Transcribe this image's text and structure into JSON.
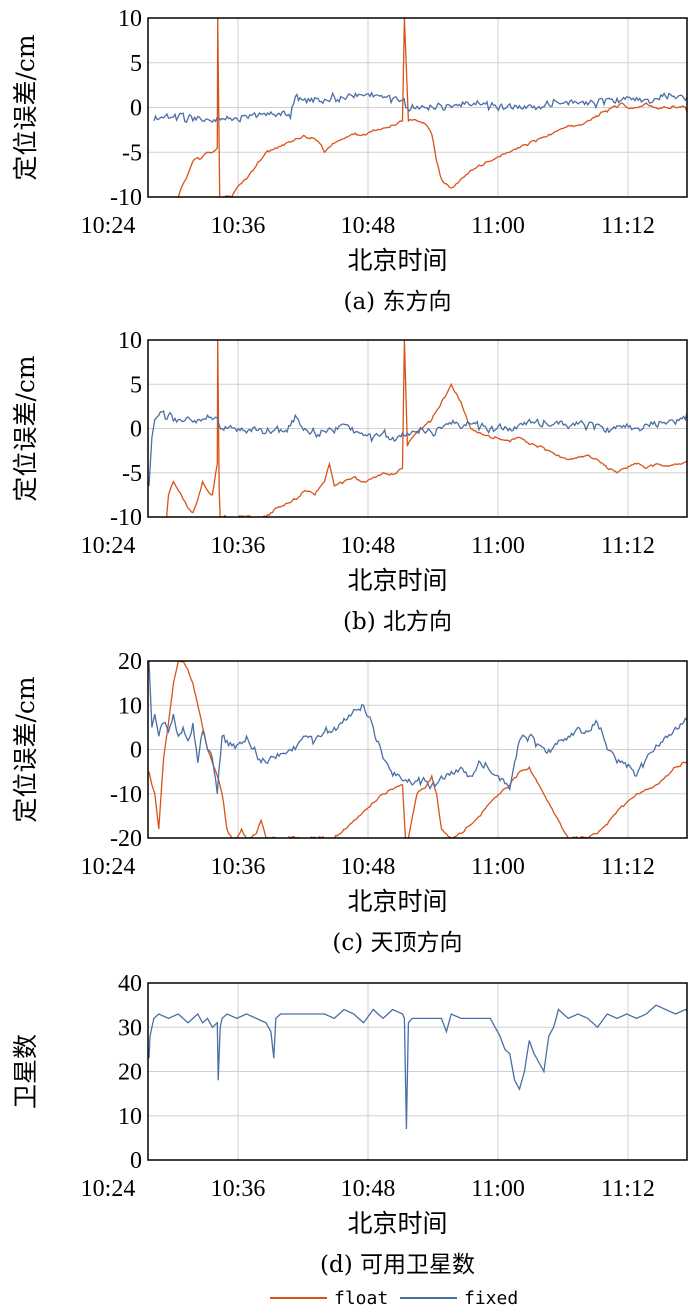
{
  "colors": {
    "float": "#d95319",
    "fixed": "#4a6fa5"
  },
  "legend": {
    "float_label": "float",
    "fixed_label": "fixed"
  },
  "chart_data": [
    {
      "type": "line",
      "caption": "(a) 东方向",
      "xlabel": "北京时间",
      "ylabel": "定位误差/cm",
      "xticks": [
        "10:24",
        "10:36",
        "10:48",
        "11:00",
        "11:12"
      ],
      "xlim_minutes": [
        0,
        56
      ],
      "ylim": [
        -10,
        10
      ],
      "yticks": [
        "10",
        "5",
        "0",
        "-5",
        "-10"
      ],
      "grid": true,
      "series": [
        {
          "name": "float",
          "x": [
            3.0,
            3.3,
            3.8,
            4.5,
            5.5,
            6.0,
            6.5,
            7.0,
            7.05,
            7.2,
            7.25,
            7.6,
            8.5,
            9.0,
            10.0,
            11.0,
            12.0,
            13.0,
            14.0,
            15.0,
            16.0,
            17.0,
            17.5,
            18.0,
            19.0,
            20.0,
            20.5,
            21.0,
            22.0,
            23.0,
            24.0,
            25.0,
            26.0,
            26.2,
            26.6,
            27.5,
            28.5,
            29.0,
            29.5,
            30.0,
            31.0,
            32.0,
            33.0,
            34.0,
            35.0,
            36.0,
            37.0,
            38.0,
            39.0,
            40.0,
            41.0,
            42.0,
            43.0,
            44.0,
            45.0,
            46.0,
            46.5,
            47.0,
            47.5,
            48.0,
            48.5,
            49.0,
            50.0,
            51.0,
            52.0,
            53.0,
            54.0,
            55.0,
            55.5
          ],
          "y": [
            -10,
            -9,
            -8,
            -6,
            -5.5,
            -5,
            -5,
            -4.5,
            10,
            -5,
            -10,
            -10,
            -10,
            -9,
            -8,
            -6.5,
            -5,
            -4.5,
            -4,
            -3.5,
            -3.2,
            -3.5,
            -4,
            -5,
            -4,
            -3.5,
            -3.2,
            -3,
            -3,
            -2.5,
            -2.3,
            -2,
            -1.5,
            10,
            -1.5,
            -1.5,
            -2,
            -3,
            -6,
            -8,
            -9,
            -8,
            -7,
            -6.5,
            -6,
            -5.5,
            -5,
            -4.5,
            -4,
            -3.5,
            -3,
            -2.5,
            -2,
            -2,
            -1.5,
            -1,
            -0.5,
            -0.5,
            0,
            0,
            0.5,
            0,
            0,
            0.5,
            0,
            0,
            0,
            0,
            -1.3
          ]
        },
        {
          "name": "fixed",
          "x": [
            0.5,
            1,
            2,
            3,
            4,
            5,
            6,
            7,
            8,
            9,
            10,
            11,
            12,
            13,
            14,
            14.5,
            15,
            16,
            17,
            18,
            19,
            20,
            21,
            22,
            23,
            24,
            25,
            26,
            26.5,
            27,
            28,
            29,
            30,
            31,
            32,
            33,
            34,
            35,
            36,
            37,
            38,
            39,
            40,
            41,
            42,
            43,
            44,
            45,
            46,
            47,
            48,
            49,
            50,
            51,
            52,
            53,
            54,
            55,
            55.5
          ],
          "y": [
            -1.5,
            -1.3,
            -1.2,
            -1.0,
            -1.2,
            -1.0,
            -1.3,
            -1.1,
            -1.0,
            -1.2,
            -1.0,
            -1.1,
            -0.9,
            -1.0,
            -0.8,
            -1.2,
            1.2,
            1.0,
            1.1,
            0.9,
            1.2,
            1.0,
            1.1,
            1.3,
            1.2,
            1.1,
            1.0,
            0.8,
            0.0,
            0.3,
            0.2,
            0.1,
            0.2,
            0.0,
            0.1,
            0.2,
            0.3,
            0.1,
            0.2,
            0.4,
            0.2,
            0.3,
            0.1,
            0.3,
            0.5,
            0.3,
            0.4,
            0.3,
            0.5,
            1.0,
            1.0,
            1.2,
            1.1,
            0.9,
            1.0,
            1.2,
            1.0,
            0.8,
            0.5
          ]
        }
      ]
    },
    {
      "type": "line",
      "caption": "(b) 北方向",
      "xlabel": "北京时间",
      "ylabel": "定位误差/cm",
      "xticks": [
        "10:24",
        "10:36",
        "10:48",
        "11:00",
        "11:12"
      ],
      "xlim_minutes": [
        0,
        56
      ],
      "ylim": [
        -10,
        10
      ],
      "yticks": [
        "10",
        "5",
        "0",
        "-5",
        "-10"
      ],
      "grid": true,
      "series": [
        {
          "name": "float",
          "x": [
            1.8,
            2.0,
            2.5,
            3.0,
            3.5,
            4.0,
            4.5,
            5.0,
            5.5,
            6.0,
            6.5,
            7.0,
            7.05,
            7.2,
            7.3,
            7.6,
            12.0,
            12.5,
            13.0,
            14.0,
            15.0,
            16.0,
            17.0,
            18.0,
            18.5,
            19.0,
            20.0,
            21.0,
            22.0,
            23.0,
            24.0,
            25.0,
            26.0,
            26.2,
            26.5,
            27.0,
            28.0,
            29.0,
            30.0,
            31.0,
            32.0,
            33.0,
            34.0,
            35.0,
            36.0,
            37.0,
            38.0,
            39.0,
            40.0,
            41.0,
            42.0,
            43.0,
            44.0,
            45.0,
            46.0,
            47.0,
            48.0,
            49.0,
            50.0,
            51.0,
            52.0,
            53.0,
            54.0,
            55.0,
            55.5
          ],
          "y": [
            -10,
            -7.5,
            -6,
            -7,
            -8,
            -9,
            -9.5,
            -8,
            -6,
            -7,
            -7.5,
            -4,
            10,
            -7,
            -10,
            -10,
            -10,
            -9.5,
            -9,
            -8.5,
            -8,
            -7,
            -7.5,
            -6,
            -4,
            -6.5,
            -6,
            -5.5,
            -6,
            -5.5,
            -5,
            -5.2,
            -4.5,
            10,
            -2,
            -1,
            0,
            1,
            3,
            5,
            3,
            0,
            -0.5,
            -1,
            -1.2,
            -1.5,
            -1.0,
            -1.8,
            -2.0,
            -2.5,
            -3.0,
            -3.5,
            -3.2,
            -3.0,
            -3.5,
            -4.5,
            -5.0,
            -4.5,
            -4.0,
            -4.5,
            -4.0,
            -4.2,
            -4.0,
            -3.8,
            -3.0
          ]
        },
        {
          "name": "fixed",
          "x": [
            0.0,
            0.3,
            0.6,
            1,
            2,
            3,
            4,
            5,
            6,
            7,
            7.5,
            8,
            9,
            10,
            11,
            12,
            13,
            14,
            15,
            16,
            17,
            18,
            19,
            20,
            21,
            22,
            23,
            24,
            25,
            26,
            27,
            28,
            29,
            30,
            31,
            32,
            33,
            34,
            35,
            36,
            37,
            38,
            39,
            40,
            41,
            42,
            43,
            44,
            45,
            46,
            47,
            48,
            49,
            50,
            51,
            52,
            53,
            54,
            55,
            55.5
          ],
          "y": [
            -6.5,
            -1.0,
            1.0,
            1.5,
            1.5,
            1.0,
            1.3,
            1.0,
            1.5,
            1.2,
            0.0,
            0.0,
            -0.3,
            -0.5,
            -0.2,
            -0.5,
            0.0,
            -0.2,
            1.5,
            0.0,
            -0.5,
            -0.3,
            -0.5,
            0.5,
            -0.5,
            -0.8,
            -1.0,
            -0.5,
            -1.0,
            -0.5,
            -0.3,
            0.0,
            -0.5,
            0.0,
            0.5,
            0.0,
            0.5,
            0.2,
            0.0,
            0.5,
            0.0,
            0.5,
            1.0,
            0.5,
            0.3,
            0.5,
            0.0,
            0.5,
            0.3,
            0.5,
            0.0,
            0.3,
            0.5,
            0.0,
            0.5,
            0.3,
            0.5,
            0.5,
            1.0,
            1.8
          ]
        }
      ]
    },
    {
      "type": "line",
      "caption": "(c) 天顶方向",
      "xlabel": "北京时间",
      "ylabel": "定位误差/cm",
      "xticks": [
        "10:24",
        "10:36",
        "10:48",
        "11:00",
        "11:12"
      ],
      "xlim_minutes": [
        0,
        56
      ],
      "ylim": [
        -20,
        20
      ],
      "yticks": [
        "20",
        "10",
        "0",
        "-10",
        "-20"
      ],
      "grid": true,
      "series": [
        {
          "name": "float",
          "x": [
            0.0,
            0.3,
            0.6,
            1.0,
            1.5,
            2.0,
            2.5,
            3.0,
            3.5,
            4.0,
            4.5,
            5.0,
            5.5,
            6.0,
            6.5,
            7.0,
            7.5,
            8.0,
            8.5,
            9.0,
            9.5,
            10.0,
            10.5,
            11.0,
            11.5,
            12.0,
            12.5,
            19.0,
            20.0,
            21.0,
            22.0,
            23.0,
            24.0,
            25.0,
            26.0,
            26.3,
            26.6,
            27.5,
            28.5,
            29.0,
            29.5,
            30.0,
            31.0,
            32.0,
            33.0,
            34.0,
            35.0,
            36.0,
            37.0,
            38.0,
            39.0,
            40.0,
            41.0,
            42.0,
            43.0,
            44.0,
            45.0,
            46.0,
            47.0,
            48.0,
            49.0,
            50.0,
            51.0,
            52.0,
            53.0,
            54.0,
            55.0,
            55.5
          ],
          "y": [
            -5,
            -8,
            -10,
            -18,
            -2,
            6,
            15,
            20,
            20,
            18,
            15,
            10,
            5,
            0,
            -3,
            -6,
            -10,
            -18,
            -20,
            -20,
            -18,
            -20,
            -20,
            -19,
            -16,
            -20,
            -20,
            -20,
            -18,
            -16,
            -14,
            -12,
            -10,
            -9,
            -8,
            -20,
            -20,
            -10,
            -8,
            -6,
            -10,
            -18,
            -20,
            -19,
            -17,
            -15,
            -12,
            -10,
            -8,
            -5,
            -4,
            -8,
            -12,
            -16,
            -20,
            -20,
            -20,
            -19,
            -17,
            -14,
            -12,
            -10,
            -9,
            -8,
            -6,
            -4,
            -3,
            -2
          ]
        },
        {
          "name": "fixed",
          "x": [
            0.0,
            0.3,
            0.6,
            1.0,
            1.5,
            2.0,
            2.5,
            3.0,
            3.5,
            4.0,
            4.5,
            5.0,
            5.5,
            6.0,
            6.5,
            7.0,
            7.5,
            8.0,
            9.0,
            10.0,
            11.0,
            12.0,
            13.0,
            14.0,
            15.0,
            16.0,
            17.0,
            18.0,
            19.0,
            20.0,
            21.0,
            22.0,
            23.0,
            24.0,
            25.0,
            26.0,
            27.0,
            28.0,
            29.0,
            30.0,
            31.0,
            32.0,
            33.0,
            34.0,
            35.0,
            36.0,
            37.0,
            38.0,
            39.0,
            40.0,
            41.0,
            42.0,
            43.0,
            44.0,
            45.0,
            46.0,
            47.0,
            48.0,
            49.0,
            50.0,
            51.0,
            52.0,
            53.0,
            54.0,
            55.0,
            55.5
          ],
          "y": [
            20,
            5,
            8,
            3,
            6,
            4,
            8,
            3,
            5,
            2,
            6,
            -3,
            4,
            0,
            -2,
            -10,
            3,
            2,
            1,
            3,
            -1,
            -3,
            -2,
            -1,
            0,
            3,
            2,
            4,
            5,
            7,
            9,
            10,
            5,
            -2,
            -6,
            -7,
            -8,
            -7,
            -8,
            -6,
            -5,
            -4,
            -6,
            -3,
            -5,
            -7,
            -9,
            2,
            3,
            1,
            0,
            2,
            3,
            5,
            4,
            6,
            0,
            -3,
            -4,
            -6,
            -2,
            1,
            3,
            5,
            7,
            9
          ]
        }
      ]
    },
    {
      "type": "line",
      "caption": "(d) 可用卫星数",
      "xlabel": "北京时间",
      "ylabel": "卫星数",
      "xticks": [
        "10:24",
        "10:36",
        "10:48",
        "11:00",
        "11:12"
      ],
      "xlim_minutes": [
        0,
        56
      ],
      "ylim": [
        0,
        40
      ],
      "yticks": [
        "40",
        "30",
        "20",
        "10",
        "0"
      ],
      "grid": true,
      "series": [
        {
          "name": "fixed",
          "x": [
            0.0,
            0.1,
            0.5,
            1.0,
            2.0,
            3.0,
            4.0,
            5.0,
            5.5,
            6.0,
            6.5,
            7.0,
            7.1,
            7.3,
            7.5,
            8.0,
            9.0,
            10.0,
            11.0,
            12.0,
            12.5,
            12.8,
            13.0,
            13.5,
            14.0,
            15.0,
            16.0,
            17.0,
            18.0,
            19.0,
            20.0,
            21.0,
            22.0,
            23.0,
            24.0,
            25.0,
            26.0,
            26.2,
            26.4,
            26.6,
            27.0,
            28.0,
            29.0,
            30.0,
            30.5,
            31.0,
            32.0,
            33.0,
            34.0,
            35.0,
            36.0,
            36.5,
            37.0,
            37.5,
            38.0,
            38.5,
            39.0,
            39.5,
            40.0,
            40.5,
            41.0,
            41.5,
            42.0,
            43.0,
            44.0,
            45.0,
            46.0,
            47.0,
            48.0,
            49.0,
            50.0,
            51.0,
            52.0,
            53.0,
            54.0,
            55.0,
            55.5
          ],
          "y": [
            23,
            28,
            32,
            33,
            32,
            33,
            31,
            33,
            31,
            32,
            30,
            31,
            18,
            30,
            32,
            33,
            32,
            33,
            32,
            31,
            29,
            23,
            32,
            33,
            33,
            33,
            33,
            33,
            33,
            32,
            34,
            33,
            31,
            34,
            32,
            34,
            33,
            32,
            7,
            31,
            32,
            32,
            32,
            32,
            29,
            33,
            32,
            32,
            32,
            32,
            28,
            25,
            24,
            18,
            16,
            20,
            27,
            24,
            22,
            20,
            28,
            30,
            34,
            32,
            33,
            32,
            30,
            33,
            32,
            33,
            32,
            33,
            35,
            34,
            33,
            34,
            33
          ]
        }
      ]
    }
  ]
}
